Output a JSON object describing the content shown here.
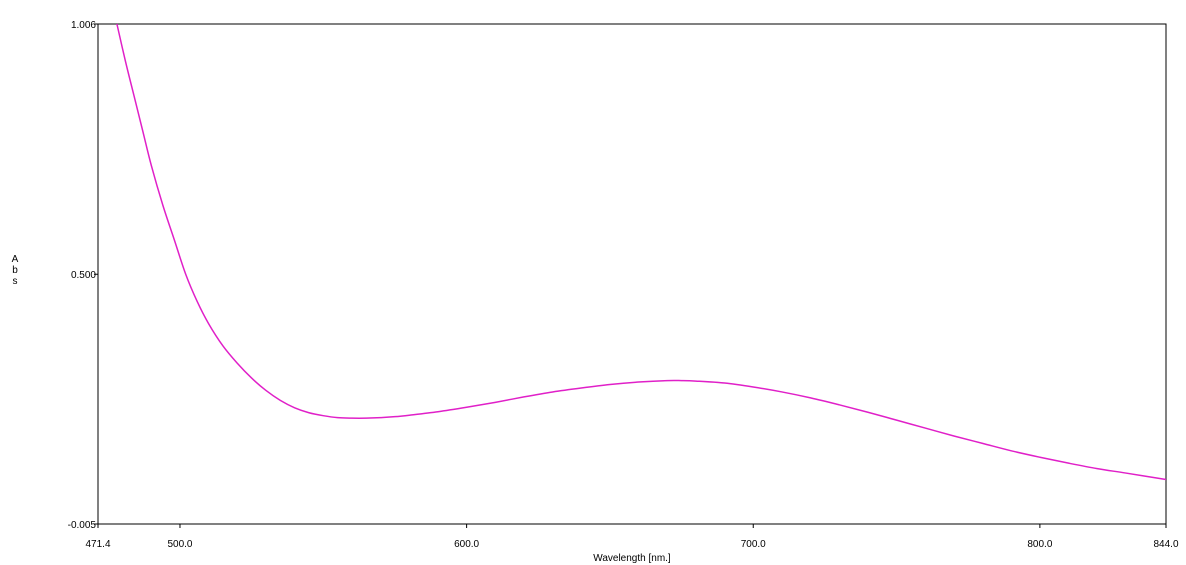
{
  "chart_data": {
    "type": "line",
    "xlabel": "Wavelength [nm.]",
    "ylabel": "Abs",
    "xlim": [
      471.4,
      844.0
    ],
    "ylim": [
      -0.005,
      1.006
    ],
    "x_ticks": [
      {
        "value": 471.4,
        "label": "471.4"
      },
      {
        "value": 500.0,
        "label": "500.0"
      },
      {
        "value": 600.0,
        "label": "600.0"
      },
      {
        "value": 700.0,
        "label": "700.0"
      },
      {
        "value": 800.0,
        "label": "800.0"
      },
      {
        "value": 844.0,
        "label": "844.0"
      }
    ],
    "y_ticks": [
      {
        "value": 1.006,
        "label": "1.006"
      },
      {
        "value": 0.5,
        "label": "0.500"
      },
      {
        "value": -0.005,
        "label": "-0.005"
      }
    ],
    "grid": false,
    "line_color": "#e020c8",
    "series": [
      {
        "x": [
          478,
          481,
          484,
          487,
          490,
          494,
          498,
          502,
          506,
          510,
          515,
          520,
          525,
          530,
          535,
          540,
          545,
          550,
          555,
          560,
          565,
          570,
          575,
          580,
          590,
          600,
          610,
          620,
          630,
          640,
          650,
          660,
          670,
          675,
          680,
          690,
          700,
          710,
          720,
          730,
          740,
          750,
          760,
          770,
          780,
          790,
          800,
          810,
          820,
          830,
          844
        ],
        "y": [
          1.006,
          0.93,
          0.86,
          0.79,
          0.72,
          0.64,
          0.57,
          0.5,
          0.445,
          0.4,
          0.355,
          0.32,
          0.29,
          0.265,
          0.245,
          0.23,
          0.22,
          0.214,
          0.21,
          0.209,
          0.209,
          0.21,
          0.212,
          0.215,
          0.222,
          0.231,
          0.241,
          0.252,
          0.262,
          0.27,
          0.277,
          0.282,
          0.285,
          0.285,
          0.284,
          0.28,
          0.272,
          0.262,
          0.25,
          0.236,
          0.221,
          0.205,
          0.189,
          0.173,
          0.158,
          0.143,
          0.13,
          0.118,
          0.107,
          0.098,
          0.085
        ]
      }
    ]
  }
}
